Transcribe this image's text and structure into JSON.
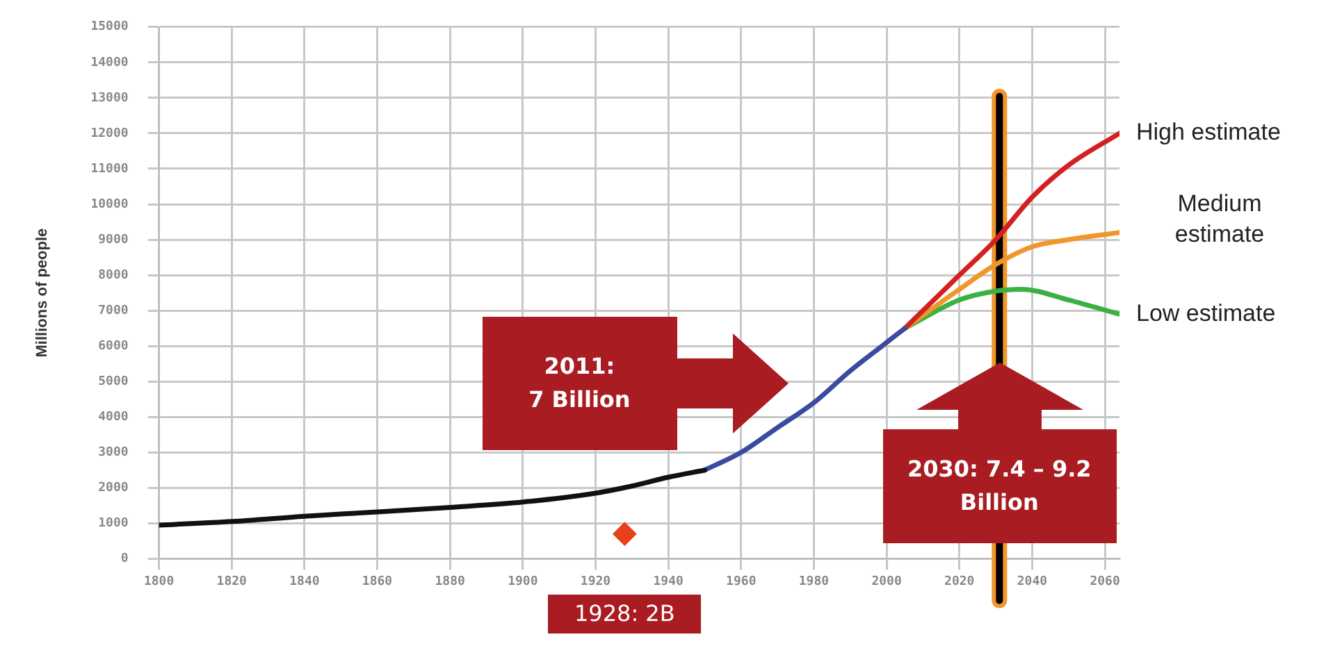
{
  "chart_data": {
    "type": "line",
    "ylabel": "Millions of people",
    "xlim": [
      1800,
      2064
    ],
    "xticks": [
      1800,
      1820,
      1840,
      1860,
      1880,
      1900,
      1920,
      1940,
      1960,
      1980,
      2000,
      2020,
      2040,
      2060
    ],
    "ylim": [
      0,
      15000
    ],
    "yticks": [
      0,
      1000,
      2000,
      3000,
      4000,
      5000,
      6000,
      7000,
      8000,
      9000,
      10000,
      11000,
      12000,
      13000,
      14000,
      15000
    ],
    "grid": true,
    "legend": false,
    "marker": "none",
    "line_style": "solid",
    "series": [
      {
        "color": "#111111",
        "x": [
          1800,
          1820,
          1840,
          1860,
          1880,
          1900,
          1920,
          1930,
          1940,
          1950
        ],
        "values": [
          950,
          1050,
          1200,
          1320,
          1450,
          1600,
          1850,
          2050,
          2300,
          2500
        ]
      },
      {
        "color": "#3a4aa0",
        "x": [
          1950,
          1960,
          1970,
          1980,
          1990,
          2000,
          2005
        ],
        "values": [
          2500,
          3000,
          3700,
          4400,
          5300,
          6100,
          6500
        ]
      },
      {
        "name": "High estimate",
        "color": "#d42020",
        "x": [
          2005,
          2020,
          2030,
          2040,
          2050,
          2064
        ],
        "values": [
          6500,
          8000,
          9000,
          10200,
          11100,
          12000
        ]
      },
      {
        "name": "Medium estimate",
        "color": "#f0962a",
        "x": [
          2005,
          2020,
          2030,
          2040,
          2050,
          2064
        ],
        "values": [
          6500,
          7600,
          8300,
          8800,
          9000,
          9200
        ]
      },
      {
        "name": "Low estimate",
        "color": "#3cb043",
        "x": [
          2005,
          2020,
          2030,
          2037,
          2050,
          2064
        ],
        "values": [
          6500,
          7300,
          7550,
          7600,
          7300,
          6900
        ]
      },
      {
        "type": "scatter",
        "marker": "diamond",
        "color": "#e8401c",
        "x": [
          1928
        ],
        "values": [
          700
        ]
      }
    ],
    "ref_lines": [
      {
        "axis": "x",
        "value": 2031,
        "color": "#f0962a"
      },
      {
        "axis": "x",
        "value": 2031,
        "color": "#000000"
      }
    ],
    "annotations": [
      "2011:\n7 Billion",
      "2030: 7.4 – 9.2\nBillion",
      {
        "text": "1928: 2B",
        "x": 1928,
        "y": 700
      }
    ]
  }
}
